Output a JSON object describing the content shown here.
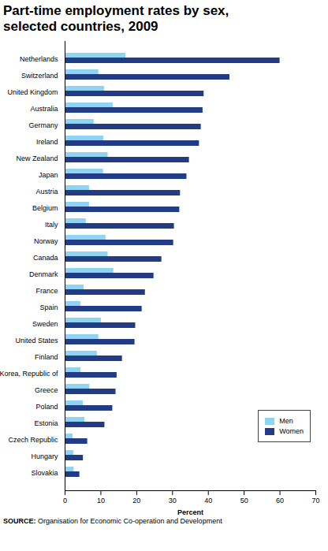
{
  "chart_data": {
    "type": "bar",
    "orientation": "horizontal",
    "title": "Part-time employment rates by sex, selected countries, 2009",
    "source": "SOURCE: Organisation for Economic Co-operation and Development",
    "xlabel": "Percent",
    "categories": [
      "Netherlands",
      "Switzerland",
      "United Kingdom",
      "Australia",
      "Germany",
      "Ireland",
      "New Zealand",
      "Japan",
      "Austria",
      "Belgium",
      "Italy",
      "Norway",
      "Canada",
      "Denmark",
      "France",
      "Spain",
      "Sweden",
      "United States",
      "Finland",
      "Korea, Republic of",
      "Greece",
      "Poland",
      "Estonia",
      "Czech Republic",
      "Hungary",
      "Slovakia"
    ],
    "series": [
      {
        "name": "Men",
        "color": "#8fd4f2",
        "values": [
          17,
          9.4,
          11,
          13.4,
          8.1,
          10.8,
          12,
          10.7,
          6.8,
          6.8,
          5.9,
          11.4,
          12,
          13.6,
          5.3,
          4.4,
          10.1,
          9.4,
          9,
          4.4,
          6.9,
          5.1,
          5.5,
          2.2,
          2.4,
          2.5
        ]
      },
      {
        "name": "Women",
        "color": "#213c84",
        "values": [
          60,
          46,
          38.8,
          38.5,
          38,
          37.5,
          34.7,
          34,
          32.2,
          32,
          30.5,
          30.3,
          27,
          24.8,
          22.4,
          21.5,
          19.7,
          19.5,
          16,
          14.5,
          14.2,
          13.3,
          11.1,
          6.3,
          5.1,
          4.1
        ]
      }
    ],
    "xlim": [
      0,
      70
    ],
    "xticks": [
      0,
      10,
      20,
      30,
      40,
      50,
      60,
      70
    ],
    "grid": false,
    "legend": "lower right"
  }
}
